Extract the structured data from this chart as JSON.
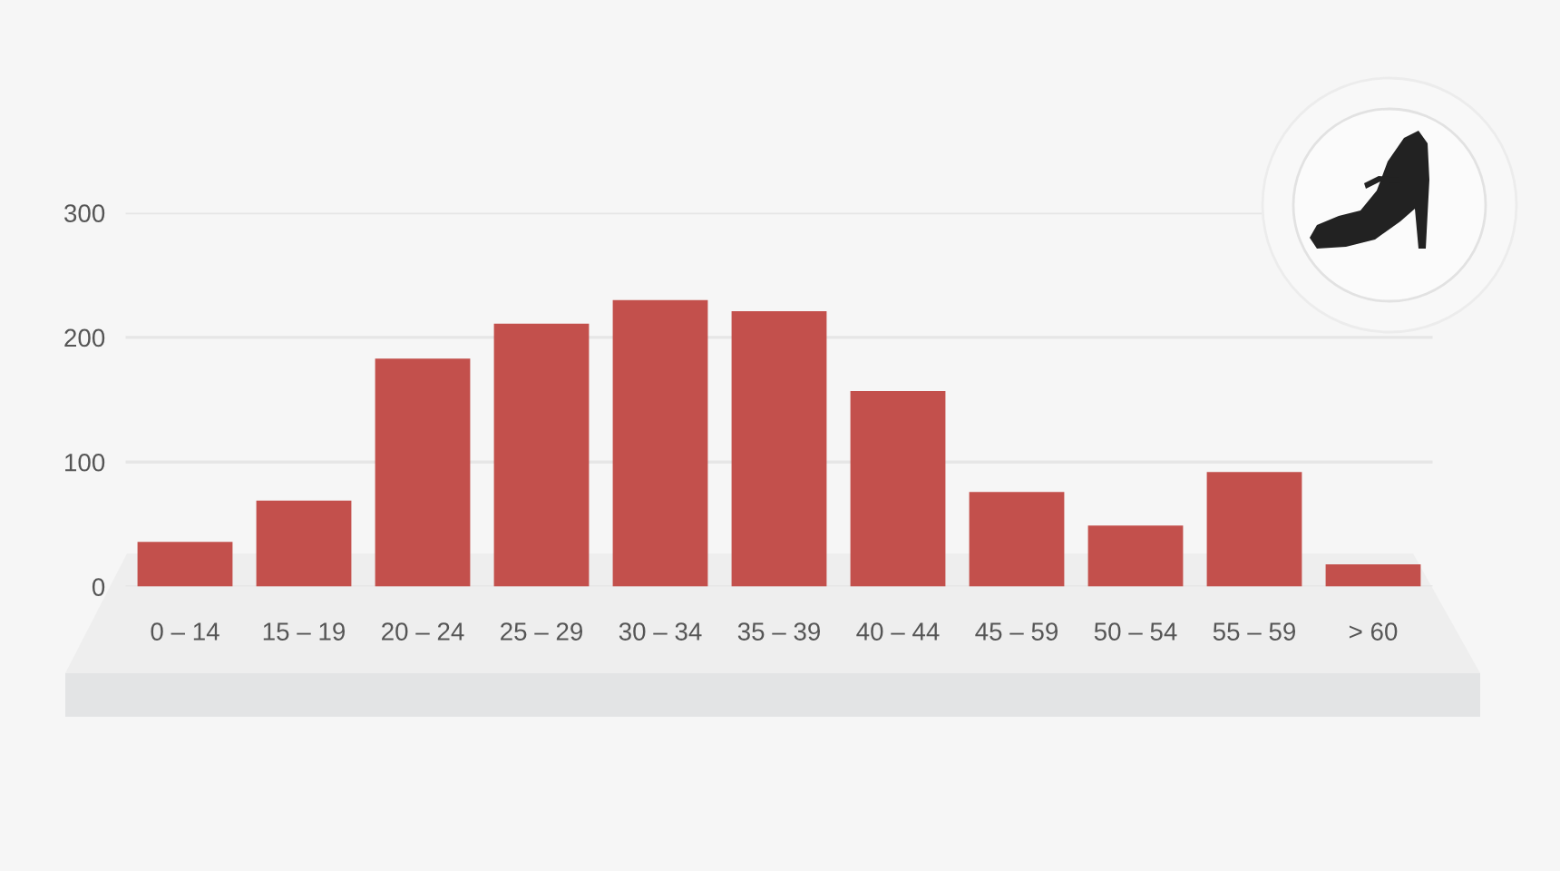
{
  "chart_data": {
    "type": "bar",
    "categories": [
      "0 – 14",
      "15 – 19",
      "20 – 24",
      "25 – 29",
      "30 – 34",
      "35 – 39",
      "40 – 44",
      "45 – 59",
      "50 – 54",
      "55 – 59",
      "> 60"
    ],
    "values": [
      36,
      69,
      183,
      211,
      230,
      221,
      157,
      76,
      49,
      92,
      18
    ],
    "color": "#c3504c",
    "ylim": [
      0,
      300
    ],
    "yticks": [
      0,
      100,
      200,
      300
    ],
    "grid": "y"
  }
}
